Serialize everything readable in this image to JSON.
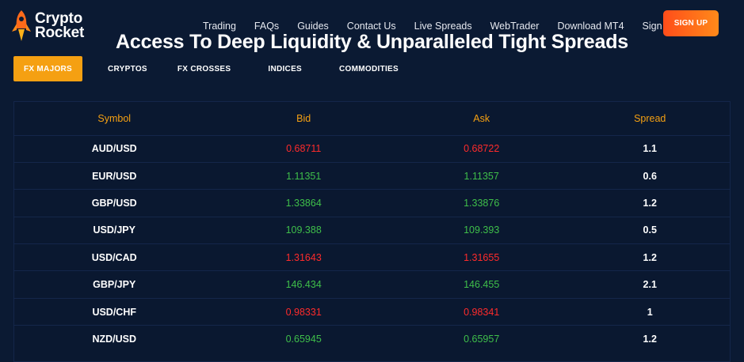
{
  "brand": {
    "line1": "Crypto",
    "line2": "Rocket"
  },
  "nav": {
    "items": [
      "Trading",
      "FAQs",
      "Guides",
      "Contact Us",
      "Live Spreads",
      "WebTrader",
      "Download MT4",
      "Sign in"
    ]
  },
  "signup_label": "SIGN UP",
  "headline": "Access To Deep Liquidity & Unparalleled Tight Spreads",
  "tabs": [
    "FX MAJORS",
    "CRYPTOS",
    "FX CROSSES",
    "INDICES",
    "COMMODITIES"
  ],
  "active_tab": "FX MAJORS",
  "colors": {
    "accent": "#f5a012",
    "up": "#3fbf4a",
    "down": "#ff2b2b",
    "background": "#0b1a33"
  },
  "table": {
    "headers": [
      "Symbol",
      "Bid",
      "Ask",
      "Spread"
    ],
    "rows": [
      {
        "symbol": "AUD/USD",
        "bid": "0.68711",
        "ask": "0.68722",
        "spread": "1.1",
        "trend": "down"
      },
      {
        "symbol": "EUR/USD",
        "bid": "1.11351",
        "ask": "1.11357",
        "spread": "0.6",
        "trend": "up"
      },
      {
        "symbol": "GBP/USD",
        "bid": "1.33864",
        "ask": "1.33876",
        "spread": "1.2",
        "trend": "up"
      },
      {
        "symbol": "USD/JPY",
        "bid": "109.388",
        "ask": "109.393",
        "spread": "0.5",
        "trend": "up"
      },
      {
        "symbol": "USD/CAD",
        "bid": "1.31643",
        "ask": "1.31655",
        "spread": "1.2",
        "trend": "down"
      },
      {
        "symbol": "GBP/JPY",
        "bid": "146.434",
        "ask": "146.455",
        "spread": "2.1",
        "trend": "up"
      },
      {
        "symbol": "USD/CHF",
        "bid": "0.98331",
        "ask": "0.98341",
        "spread": "1",
        "trend": "down"
      },
      {
        "symbol": "NZD/USD",
        "bid": "0.65945",
        "ask": "0.65957",
        "spread": "1.2",
        "trend": "up"
      }
    ]
  }
}
